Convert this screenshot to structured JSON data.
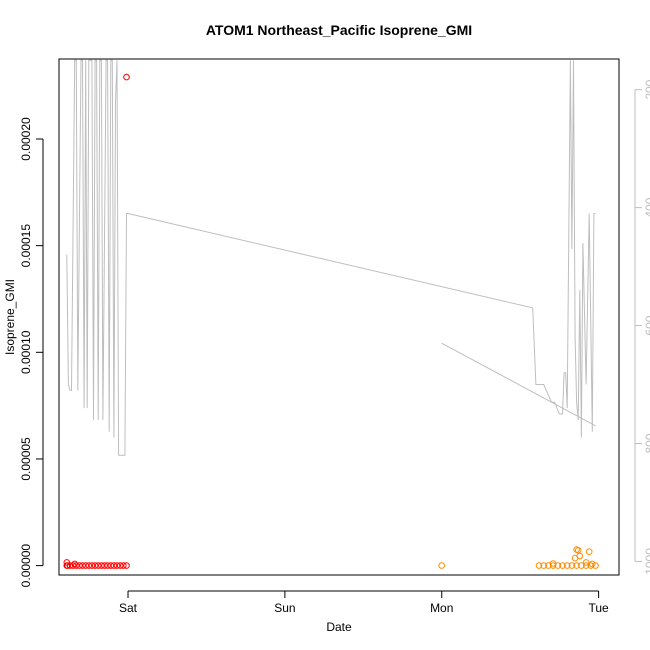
{
  "chart_data": {
    "type": "scatter",
    "title": "ATOM1 Northeast_Pacific Isoprene_GMI",
    "xlabel": "Date",
    "ylabel": "Isoprene_GMI",
    "x_ticks": [
      "Sat",
      "Sun",
      "Mon",
      "Tue"
    ],
    "xlim": [
      -0.44,
      3.13
    ],
    "ylim": [
      -4.4e-06,
      0.0002375
    ],
    "y_ticks": [
      "0.00000",
      "0.00005",
      "0.00010",
      "0.00015",
      "0.00020"
    ],
    "y_tick_values": [
      0,
      5e-05,
      0.0001,
      0.00015,
      0.0002
    ],
    "y2_label": "",
    "y2lim": [
      1023,
      148
    ],
    "y2_ticks": [
      "200",
      "400",
      "600",
      "800",
      "1000"
    ],
    "y2_tick_values": [
      200,
      400,
      600,
      800,
      1000
    ],
    "colors": {
      "series_1": "#ff0000",
      "series_2": "#ff8c00",
      "pressure_line": "#bebebe",
      "right_axis_text": "#bebebe"
    },
    "series": [
      {
        "color": "#ff0000",
        "x": [
          -0.39,
          -0.385,
          -0.37,
          -0.35,
          -0.33,
          -0.31,
          -0.29,
          -0.27,
          -0.25,
          -0.23,
          -0.21,
          -0.19,
          -0.17,
          -0.15,
          -0.13,
          -0.11,
          -0.09,
          -0.07,
          -0.05,
          -0.03,
          -0.01,
          -0.39,
          -0.34,
          -0.01
        ],
        "y": [
          0,
          0,
          0,
          0,
          0,
          0,
          0,
          0,
          0,
          0,
          0,
          0,
          0,
          0,
          0,
          0,
          0,
          0,
          0,
          0,
          0,
          1.5e-06,
          8e-07,
          0.000229
        ]
      },
      {
        "color": "#ff8c00",
        "x": [
          2.0,
          2.62,
          2.65,
          2.68,
          2.71,
          2.74,
          2.77,
          2.8,
          2.83,
          2.86,
          2.89,
          2.92,
          2.95,
          2.98,
          2.71,
          2.86,
          2.87,
          2.88,
          2.85,
          2.94,
          2.92,
          2.96
        ],
        "y": [
          0,
          0,
          0,
          0,
          0,
          0,
          0,
          0,
          0,
          0,
          0,
          0,
          0,
          0,
          1e-06,
          7.5e-06,
          7.2e-06,
          4.5e-06,
          3.5e-06,
          6.5e-06,
          1.5e-06,
          8e-07
        ]
      }
    ],
    "pressure_line": {
      "axis": "right",
      "segments": [
        {
          "x": [
            -0.39,
            -0.38,
            -0.37,
            -0.36,
            -0.34,
            -0.33,
            -0.32,
            -0.3,
            -0.29,
            -0.28,
            -0.27,
            -0.26,
            -0.25,
            -0.23,
            -0.22,
            -0.21,
            -0.2,
            -0.19,
            -0.18,
            -0.17,
            -0.16,
            -0.14,
            -0.13,
            -0.12,
            -0.11,
            -0.1,
            -0.09,
            -0.08,
            -0.07,
            -0.06,
            -0.05,
            -0.04,
            -0.03,
            -0.02,
            -0.01,
            0.0
          ],
          "y": [
            480,
            700,
            710,
            710,
            150,
            150,
            710,
            150,
            150,
            740,
            150,
            740,
            150,
            150,
            760,
            150,
            150,
            760,
            150,
            150,
            760,
            150,
            150,
            780,
            150,
            150,
            790,
            220,
            150,
            820,
            820,
            820,
            820,
            820,
            410,
            410
          ]
        },
        {
          "x": [
            0.0,
            2.58,
            2.6,
            2.65,
            2.7,
            2.72,
            2.75,
            2.77,
            2.78,
            2.79,
            2.8,
            2.82,
            2.83,
            2.84,
            2.85,
            2.86,
            2.87,
            2.88,
            2.89,
            2.9,
            2.92,
            2.94,
            2.96,
            2.97,
            2.98
          ],
          "y": [
            410,
            570,
            700,
            700,
            730,
            730,
            750,
            750,
            680,
            680,
            740,
            150,
            470,
            150,
            620,
            730,
            760,
            540,
            790,
            460,
            700,
            410,
            780,
            410,
            410
          ]
        },
        {
          "x": [
            2.0,
            2.98
          ],
          "y": [
            630,
            770
          ]
        }
      ]
    }
  }
}
